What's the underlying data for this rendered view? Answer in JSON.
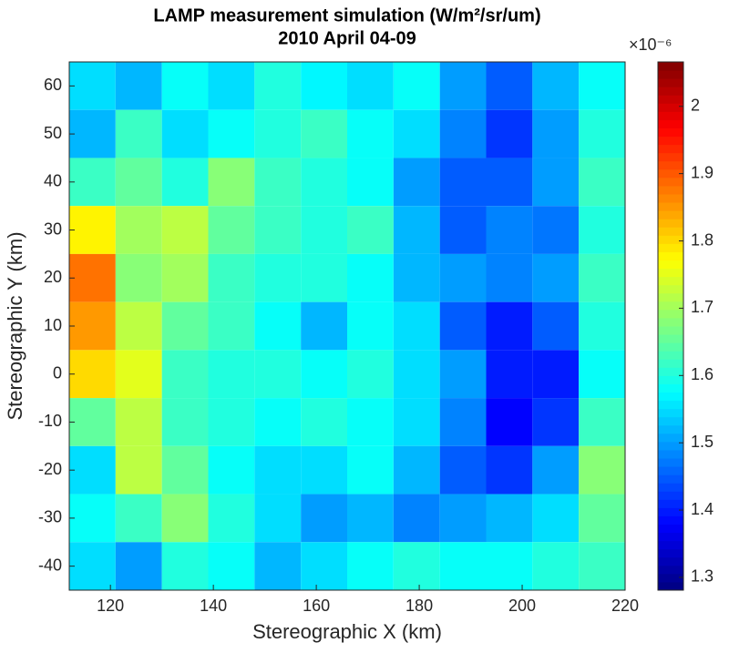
{
  "chart_data": {
    "type": "heatmap",
    "title": "LAMP measurement simulation (W/m²/sr/um)",
    "subtitle": "2010 April 04-09",
    "x_label": "Stereographic X (km)",
    "y_label": "Stereographic Y (km)",
    "colorbar_label": "×10⁻⁶",
    "colormap": "jet",
    "x": [
      116.5,
      125.5,
      134.5,
      143.5,
      152.5,
      161.5,
      170.5,
      179.5,
      188.5,
      197.5,
      206.5,
      215.5
    ],
    "y": [
      60,
      50,
      40,
      30,
      20,
      10,
      0,
      -10,
      -20,
      -30,
      -40
    ],
    "z": [
      [
        1.55,
        1.52,
        1.58,
        1.55,
        1.6,
        1.57,
        1.55,
        1.58,
        1.5,
        1.45,
        1.52,
        1.58
      ],
      [
        1.52,
        1.62,
        1.55,
        1.58,
        1.6,
        1.62,
        1.58,
        1.55,
        1.48,
        1.42,
        1.5,
        1.6
      ],
      [
        1.62,
        1.65,
        1.6,
        1.68,
        1.62,
        1.6,
        1.58,
        1.5,
        1.45,
        1.45,
        1.5,
        1.62
      ],
      [
        1.78,
        1.7,
        1.72,
        1.65,
        1.62,
        1.6,
        1.62,
        1.52,
        1.45,
        1.48,
        1.47,
        1.6
      ],
      [
        1.88,
        1.68,
        1.7,
        1.62,
        1.6,
        1.6,
        1.58,
        1.52,
        1.5,
        1.48,
        1.5,
        1.62
      ],
      [
        1.85,
        1.72,
        1.65,
        1.62,
        1.58,
        1.52,
        1.58,
        1.55,
        1.45,
        1.4,
        1.45,
        1.6
      ],
      [
        1.8,
        1.75,
        1.62,
        1.6,
        1.6,
        1.58,
        1.6,
        1.55,
        1.5,
        1.4,
        1.4,
        1.58
      ],
      [
        1.65,
        1.72,
        1.62,
        1.6,
        1.58,
        1.6,
        1.58,
        1.55,
        1.48,
        1.38,
        1.42,
        1.62
      ],
      [
        1.55,
        1.72,
        1.65,
        1.58,
        1.55,
        1.55,
        1.58,
        1.52,
        1.45,
        1.42,
        1.5,
        1.68
      ],
      [
        1.58,
        1.62,
        1.68,
        1.6,
        1.55,
        1.5,
        1.52,
        1.48,
        1.5,
        1.52,
        1.55,
        1.65
      ],
      [
        1.55,
        1.5,
        1.6,
        1.58,
        1.52,
        1.55,
        1.58,
        1.6,
        1.58,
        1.58,
        1.6,
        1.62
      ]
    ],
    "xlim": [
      112,
      220
    ],
    "xticks": [
      120,
      140,
      160,
      180,
      200,
      220
    ],
    "ylim": [
      -45,
      65
    ],
    "yticks": [
      -40,
      -30,
      -20,
      -10,
      0,
      10,
      20,
      30,
      40,
      50,
      60
    ],
    "clim": [
      1.281,
      2.066
    ],
    "cticks": [
      1.3,
      1.4,
      1.5,
      1.6,
      1.7,
      1.8,
      1.9,
      2
    ]
  }
}
